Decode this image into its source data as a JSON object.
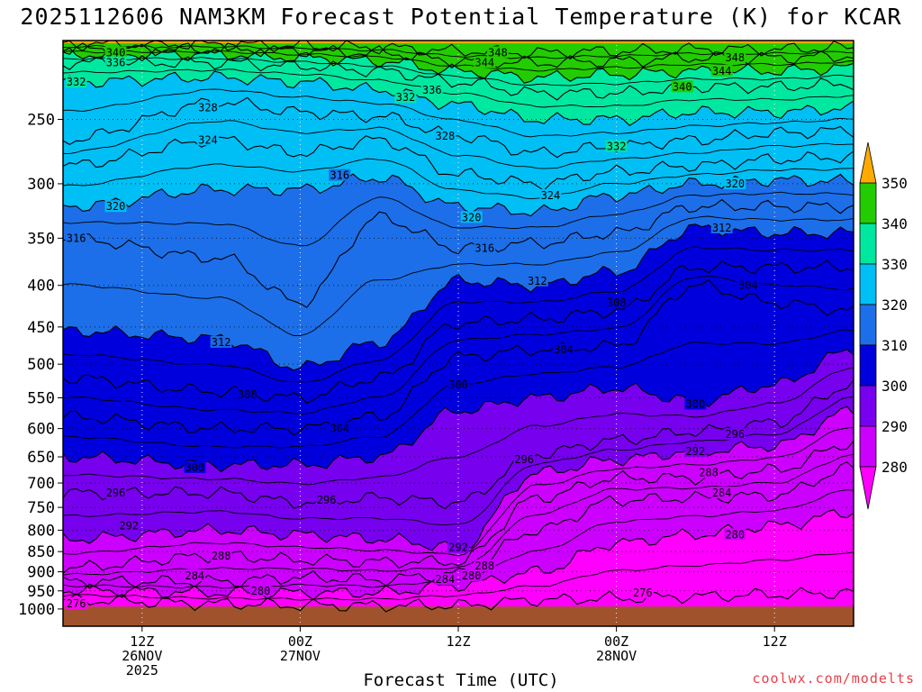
{
  "title": "2025112606 NAM3KM Forecast Potential Temperature (K) for KCAR",
  "xlabel": "Forecast Time (UTC)",
  "credit": "coolwx.com/modelts",
  "colors": {
    "bands": [
      "#cc00ff",
      "#7700ee",
      "#0000dd",
      "#1c6fe8",
      "#00bff5",
      "#00e8a0",
      "#22cc00",
      "#ffff00",
      "#ffaa00"
    ],
    "ground": "#a0522d",
    "below_280": "#ff00ff"
  },
  "chart_data": {
    "type": "contour",
    "title": "2025112606 NAM3KM Forecast Potential Temperature (K) for KCAR",
    "xlabel": "Forecast Time (UTC)",
    "ylabel": "",
    "x_unit": "hours after 2025-11-26 06Z",
    "x_range": [
      0,
      60
    ],
    "x_ticks": [
      {
        "hour": 6,
        "label": [
          "12Z",
          "26NOV",
          "2025"
        ]
      },
      {
        "hour": 18,
        "label": [
          "00Z",
          "27NOV"
        ]
      },
      {
        "hour": 30,
        "label": [
          "12Z"
        ]
      },
      {
        "hour": 42,
        "label": [
          "00Z",
          "28NOV"
        ]
      },
      {
        "hour": 54,
        "label": [
          "12Z"
        ]
      }
    ],
    "y_scale": "log-pressure",
    "y_range_hpa": [
      1050,
      200
    ],
    "y_ticks": [
      250,
      300,
      350,
      400,
      450,
      500,
      550,
      600,
      650,
      700,
      750,
      800,
      850,
      900,
      950,
      1000
    ],
    "grid": true,
    "colorbar": {
      "levels": [
        280,
        290,
        300,
        310,
        320,
        330,
        340,
        350
      ],
      "extend": "both"
    },
    "ground_pressure_hpa": 993,
    "isentrope_profiles": [
      {
        "hour": 0,
        "pressure_hpa": {
          "276": 975,
          "280": 948,
          "284": 925,
          "288": 890,
          "292": 820,
          "296": 720,
          "300": 650,
          "304": 580,
          "308": 520,
          "312": 455,
          "316": 350,
          "320": 320,
          "324": 285,
          "328": 265,
          "332": 225,
          "336": 213,
          "340": 208,
          "344": 205,
          "348": 202
        }
      },
      {
        "hour": 12,
        "pressure_hpa": {
          "276": 985,
          "280": 955,
          "284": 925,
          "288": 860,
          "292": 800,
          "296": 720,
          "300": 665,
          "304": 600,
          "308": 540,
          "312": 465,
          "316": 370,
          "320": 305,
          "324": 265,
          "328": 238,
          "332": 222,
          "336": 213,
          "340": 208,
          "344": 205,
          "348": 202
        }
      },
      {
        "hour": 18,
        "pressure_hpa": {
          "276": 990,
          "280": 955,
          "284": 915,
          "288": 870,
          "292": 810,
          "296": 740,
          "300": 665,
          "304": 600,
          "308": 550,
          "312": 505,
          "316": 420,
          "320": 305,
          "324": 275,
          "328": 245,
          "332": 225,
          "336": 215,
          "340": 210,
          "344": 206,
          "348": 203
        }
      },
      {
        "hour": 24,
        "pressure_hpa": {
          "276": 990,
          "280": 955,
          "284": 920,
          "288": 875,
          "292": 820,
          "296": 730,
          "300": 650,
          "304": 580,
          "308": 520,
          "312": 470,
          "316": 330,
          "320": 295,
          "324": 265,
          "328": 248,
          "332": 230,
          "336": 218,
          "340": 212,
          "344": 207,
          "348": 204
        }
      },
      {
        "hour": 30,
        "pressure_hpa": {
          "276": 990,
          "280": 935,
          "284": 905,
          "288": 875,
          "292": 840,
          "296": 740,
          "300": 570,
          "304": 490,
          "308": 445,
          "312": 395,
          "316": 360,
          "320": 320,
          "324": 292,
          "328": 262,
          "332": 240,
          "336": 225,
          "340": 218,
          "344": 212,
          "348": 206
        }
      },
      {
        "hour": 36,
        "pressure_hpa": {
          "276": 975,
          "280": 900,
          "284": 800,
          "288": 730,
          "292": 680,
          "296": 645,
          "300": 550,
          "304": 480,
          "308": 440,
          "312": 400,
          "316": 355,
          "320": 325,
          "324": 300,
          "328": 275,
          "332": 250,
          "336": 232,
          "340": 222,
          "344": 213,
          "348": 207
        }
      },
      {
        "hour": 42,
        "pressure_hpa": {
          "276": 970,
          "280": 830,
          "284": 735,
          "288": 690,
          "292": 655,
          "296": 620,
          "300": 535,
          "304": 475,
          "308": 430,
          "312": 385,
          "316": 345,
          "320": 310,
          "324": 290,
          "328": 270,
          "332": 250,
          "336": 232,
          "340": 220,
          "344": 212,
          "348": 206
        }
      },
      {
        "hour": 48,
        "pressure_hpa": {
          "276": 965,
          "280": 810,
          "284": 730,
          "288": 690,
          "292": 640,
          "296": 605,
          "300": 555,
          "304": 400,
          "308": 380,
          "312": 340,
          "316": 320,
          "320": 300,
          "324": 285,
          "328": 265,
          "332": 245,
          "336": 228,
          "340": 218,
          "344": 210,
          "348": 205
        }
      },
      {
        "hour": 54,
        "pressure_hpa": {
          "276": 960,
          "280": 790,
          "284": 725,
          "288": 675,
          "292": 630,
          "296": 590,
          "300": 530,
          "304": 420,
          "308": 380,
          "312": 345,
          "316": 320,
          "320": 297,
          "324": 280,
          "328": 260,
          "332": 245,
          "336": 228,
          "340": 218,
          "344": 210,
          "348": 205
        }
      },
      {
        "hour": 60,
        "pressure_hpa": {
          "276": 955,
          "280": 760,
          "284": 670,
          "288": 625,
          "292": 570,
          "296": 530,
          "300": 480,
          "304": 430,
          "308": 380,
          "312": 345,
          "316": 320,
          "320": 298,
          "324": 278,
          "328": 258,
          "332": 242,
          "336": 226,
          "340": 216,
          "344": 209,
          "348": 204
        }
      }
    ],
    "contour_labels": [
      {
        "value": "340",
        "hour": 4,
        "pressure_hpa": 207
      },
      {
        "value": "336",
        "hour": 4,
        "pressure_hpa": 213
      },
      {
        "value": "332",
        "hour": 1,
        "pressure_hpa": 225
      },
      {
        "value": "328",
        "hour": 11,
        "pressure_hpa": 242
      },
      {
        "value": "324",
        "hour": 11,
        "pressure_hpa": 265
      },
      {
        "value": "320",
        "hour": 4,
        "pressure_hpa": 320
      },
      {
        "value": "316",
        "hour": 1,
        "pressure_hpa": 350
      },
      {
        "value": "316",
        "hour": 21,
        "pressure_hpa": 293
      },
      {
        "value": "312",
        "hour": 12,
        "pressure_hpa": 470
      },
      {
        "value": "308",
        "hour": 14,
        "pressure_hpa": 545
      },
      {
        "value": "304",
        "hour": 21,
        "pressure_hpa": 600
      },
      {
        "value": "300",
        "hour": 10,
        "pressure_hpa": 670
      },
      {
        "value": "296",
        "hour": 4,
        "pressure_hpa": 720
      },
      {
        "value": "296",
        "hour": 20,
        "pressure_hpa": 735
      },
      {
        "value": "292",
        "hour": 5,
        "pressure_hpa": 790
      },
      {
        "value": "288",
        "hour": 12,
        "pressure_hpa": 860
      },
      {
        "value": "284",
        "hour": 10,
        "pressure_hpa": 910
      },
      {
        "value": "280",
        "hour": 15,
        "pressure_hpa": 950
      },
      {
        "value": "276",
        "hour": 1,
        "pressure_hpa": 985
      },
      {
        "value": "348",
        "hour": 33,
        "pressure_hpa": 207
      },
      {
        "value": "344",
        "hour": 32,
        "pressure_hpa": 213
      },
      {
        "value": "336",
        "hour": 28,
        "pressure_hpa": 230
      },
      {
        "value": "332",
        "hour": 26,
        "pressure_hpa": 235
      },
      {
        "value": "328",
        "hour": 29,
        "pressure_hpa": 262
      },
      {
        "value": "320",
        "hour": 31,
        "pressure_hpa": 330
      },
      {
        "value": "316",
        "hour": 32,
        "pressure_hpa": 360
      },
      {
        "value": "312",
        "hour": 36,
        "pressure_hpa": 395
      },
      {
        "value": "304",
        "hour": 38,
        "pressure_hpa": 480
      },
      {
        "value": "300",
        "hour": 30,
        "pressure_hpa": 530
      },
      {
        "value": "296",
        "hour": 35,
        "pressure_hpa": 655
      },
      {
        "value": "292",
        "hour": 30,
        "pressure_hpa": 840
      },
      {
        "value": "288",
        "hour": 32,
        "pressure_hpa": 885
      },
      {
        "value": "284",
        "hour": 29,
        "pressure_hpa": 920
      },
      {
        "value": "280",
        "hour": 31,
        "pressure_hpa": 910
      },
      {
        "value": "332",
        "hour": 42,
        "pressure_hpa": 270
      },
      {
        "value": "324",
        "hour": 37,
        "pressure_hpa": 310
      },
      {
        "value": "308",
        "hour": 42,
        "pressure_hpa": 420
      },
      {
        "value": "348",
        "hour": 51,
        "pressure_hpa": 210
      },
      {
        "value": "344",
        "hour": 50,
        "pressure_hpa": 218
      },
      {
        "value": "340",
        "hour": 47,
        "pressure_hpa": 228
      },
      {
        "value": "320",
        "hour": 51,
        "pressure_hpa": 300
      },
      {
        "value": "312",
        "hour": 50,
        "pressure_hpa": 340
      },
      {
        "value": "304",
        "hour": 52,
        "pressure_hpa": 400
      },
      {
        "value": "300",
        "hour": 48,
        "pressure_hpa": 560
      },
      {
        "value": "296",
        "hour": 51,
        "pressure_hpa": 610
      },
      {
        "value": "292",
        "hour": 48,
        "pressure_hpa": 640
      },
      {
        "value": "288",
        "hour": 49,
        "pressure_hpa": 680
      },
      {
        "value": "284",
        "hour": 50,
        "pressure_hpa": 720
      },
      {
        "value": "280",
        "hour": 51,
        "pressure_hpa": 810
      },
      {
        "value": "276",
        "hour": 44,
        "pressure_hpa": 955
      }
    ]
  }
}
